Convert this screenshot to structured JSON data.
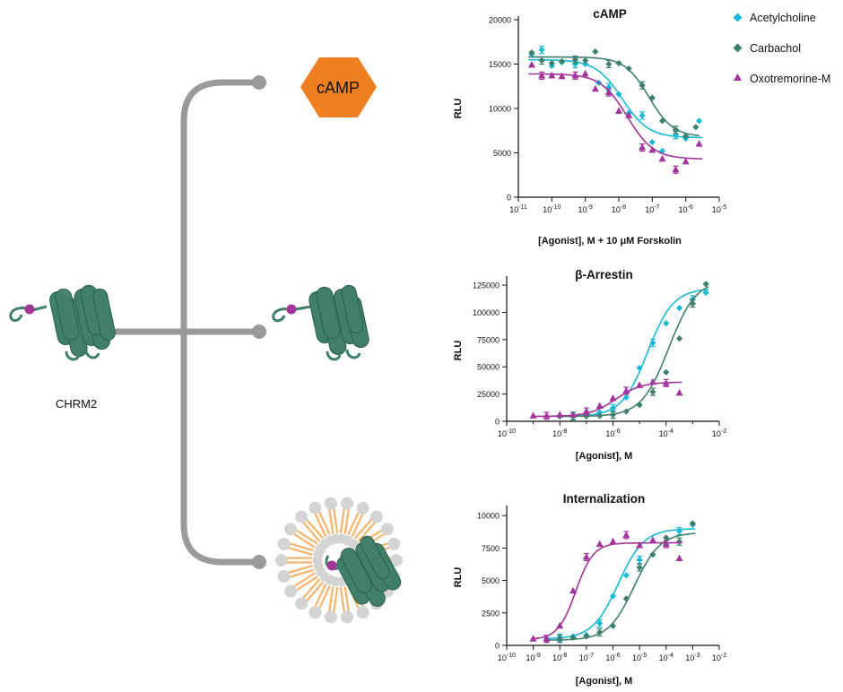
{
  "diagram": {
    "receptor_label": "CHRM2",
    "camp_badge": "cAMP"
  },
  "colors": {
    "acetylcholine": "#19b9d6",
    "carbachol": "#3f7f6b",
    "oxotremorine": "#a3349a",
    "connector": "#9a9a9a",
    "receptor": "#3f7f6b",
    "badge": "#f07f22",
    "lipid_head": "#d4d4d4",
    "lipid_tail": "#f5b36b"
  },
  "legend": [
    "Acetylcholine",
    "Carbachol",
    "Oxotremorine-M"
  ],
  "chart_data": [
    {
      "type": "scatter",
      "title": "cAMP",
      "xlabel": "[Agonist], M + 10 μM Forskolin",
      "ylabel": "RLU",
      "x_scale": "log",
      "xlim_exp": [
        -11,
        -5
      ],
      "x_ticks": [
        "10-11",
        "10-10",
        "10-9",
        "10-8",
        "10-7",
        "10-6",
        "10-5"
      ],
      "ylim": [
        0,
        20000
      ],
      "y_ticks": [
        0,
        5000,
        10000,
        15000,
        20000
      ],
      "grid": false,
      "series": [
        {
          "name": "Acetylcholine",
          "marker": "diamond",
          "log_x": [
            -10.6,
            -10.3,
            -10,
            -9.7,
            -9.3,
            -9,
            -8.6,
            -8.3,
            -8,
            -7.7,
            -7.3,
            -7,
            -6.7,
            -6.3,
            -6,
            -5.6
          ],
          "y": [
            16100,
            16600,
            14800,
            15200,
            15000,
            15000,
            12900,
            12400,
            11600,
            9500,
            9200,
            6200,
            5200,
            7000,
            6600,
            8600
          ],
          "fit": {
            "top": 15500,
            "bottom": 6700,
            "log_ec50": -7.9,
            "hill": 1.1
          }
        },
        {
          "name": "Carbachol",
          "marker": "diamond",
          "log_x": [
            -10.6,
            -10.3,
            -10,
            -9.7,
            -9.3,
            -9,
            -8.7,
            -8.3,
            -8,
            -7.7,
            -7.3,
            -7,
            -6.7,
            -6.3,
            -6,
            -5.7
          ],
          "y": [
            16300,
            15400,
            15100,
            15300,
            15500,
            15400,
            16400,
            15000,
            15100,
            14500,
            12600,
            11200,
            8600,
            7600,
            6900,
            7900
          ],
          "fit": {
            "top": 15800,
            "bottom": 6800,
            "log_ec50": -7.1,
            "hill": 1.2
          }
        },
        {
          "name": "Oxotremorine-M",
          "marker": "triangle",
          "log_x": [
            -10.6,
            -10.3,
            -10,
            -9.7,
            -9.3,
            -9,
            -8.7,
            -8.3,
            -8,
            -7.7,
            -7.3,
            -7,
            -6.7,
            -6.3,
            -6,
            -5.6
          ],
          "y": [
            14900,
            13700,
            13700,
            13600,
            13700,
            13900,
            12200,
            11800,
            9700,
            9200,
            5600,
            5300,
            4300,
            3100,
            4000,
            6000
          ],
          "fit": {
            "top": 13900,
            "bottom": 4300,
            "log_ec50": -7.75,
            "hill": 1.1
          }
        }
      ]
    },
    {
      "type": "scatter",
      "title": "β-Arrestin",
      "xlabel": "[Agonist], M",
      "ylabel": "RLU",
      "x_scale": "log",
      "xlim_exp": [
        -10,
        -2
      ],
      "x_ticks": [
        "10-10",
        "10-8",
        "10-6",
        "10-4",
        "10-2"
      ],
      "ylim": [
        0,
        130000
      ],
      "y_ticks": [
        0,
        25000,
        50000,
        75000,
        100000,
        125000
      ],
      "grid": false,
      "series": [
        {
          "name": "Acetylcholine",
          "marker": "diamond",
          "log_x": [
            -8,
            -7.5,
            -7,
            -6.5,
            -6,
            -5.5,
            -5,
            -4.5,
            -4,
            -3.5,
            -3,
            -2.5
          ],
          "y": [
            5000,
            5000,
            6000,
            8000,
            12000,
            22000,
            49000,
            72000,
            90000,
            104000,
            112000,
            118000
          ],
          "fit": {
            "top": 122000,
            "bottom": 4500,
            "log_ec50": -4.7,
            "hill": 0.9
          }
        },
        {
          "name": "Carbachol",
          "marker": "diamond",
          "log_x": [
            -8,
            -7.5,
            -7,
            -6.5,
            -6,
            -5.5,
            -5,
            -4.5,
            -4,
            -3.5,
            -3,
            -2.5
          ],
          "y": [
            4500,
            4500,
            4500,
            5000,
            6000,
            9000,
            15000,
            27000,
            45000,
            76000,
            108000,
            126000
          ],
          "fit": {
            "top": 130000,
            "bottom": 4500,
            "log_ec50": -3.9,
            "hill": 0.85
          }
        },
        {
          "name": "Oxotremorine-M",
          "marker": "triangle",
          "log_x": [
            -9,
            -8.5,
            -8,
            -7.5,
            -7,
            -6.5,
            -6,
            -5.5,
            -5,
            -4.5,
            -4,
            -3.5
          ],
          "y": [
            5000,
            5000,
            6000,
            6000,
            9000,
            14000,
            21000,
            28000,
            33000,
            36000,
            35000,
            26000
          ],
          "fit": {
            "top": 36000,
            "bottom": 4500,
            "log_ec50": -5.9,
            "hill": 0.9
          }
        }
      ]
    },
    {
      "type": "scatter",
      "title": "Internalization",
      "xlabel": "[Agonist], M",
      "ylabel": "RLU",
      "x_scale": "log",
      "xlim_exp": [
        -10,
        -2
      ],
      "x_ticks": [
        "10-10",
        "10-9",
        "10-8",
        "10-7",
        "10-6",
        "10-5",
        "10-4",
        "10-3",
        "10-2"
      ],
      "ylim": [
        0,
        10500
      ],
      "y_ticks": [
        0,
        2500,
        5000,
        7500,
        10000
      ],
      "grid": false,
      "series": [
        {
          "name": "Acetylcholine",
          "marker": "diamond",
          "log_x": [
            -8.5,
            -8,
            -7.5,
            -7,
            -6.5,
            -6,
            -5.5,
            -5,
            -4.5,
            -4,
            -3.5,
            -3
          ],
          "y": [
            500,
            600,
            700,
            800,
            1700,
            3800,
            5400,
            6600,
            7000,
            7800,
            8800,
            9300
          ],
          "fit": {
            "top": 9000,
            "bottom": 500,
            "log_ec50": -5.8,
            "hill": 0.9
          }
        },
        {
          "name": "Carbachol",
          "marker": "diamond",
          "log_x": [
            -8.5,
            -8,
            -7.5,
            -7,
            -6.5,
            -6,
            -5.5,
            -5,
            -4.5,
            -4,
            -3.5,
            -3
          ],
          "y": [
            400,
            500,
            600,
            700,
            1000,
            1500,
            3600,
            6000,
            7000,
            8300,
            8000,
            9400
          ],
          "fit": {
            "top": 8700,
            "bottom": 400,
            "log_ec50": -5.2,
            "hill": 0.9
          }
        },
        {
          "name": "Oxotremorine-M",
          "marker": "triangle",
          "log_x": [
            -9,
            -8.5,
            -8,
            -7.5,
            -7,
            -6.5,
            -6,
            -5.5,
            -5,
            -4.5,
            -4,
            -3.5
          ],
          "y": [
            500,
            500,
            1500,
            4200,
            6800,
            7800,
            8000,
            8500,
            7700,
            8100,
            7800,
            6700
          ],
          "fit": {
            "top": 7900,
            "bottom": 450,
            "log_ec50": -7.4,
            "hill": 1.3
          }
        }
      ]
    }
  ]
}
